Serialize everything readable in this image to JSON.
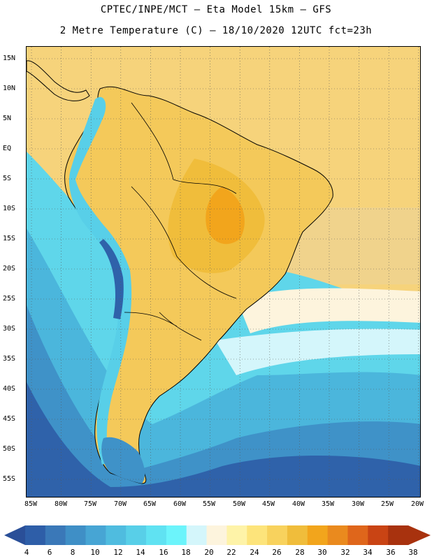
{
  "header": {
    "line1": "CPTEC/INPE/MCT –  Eta Model 15km – GFS",
    "line2": "2 Metre Temperature (C) – 18/10/2020 12UTC fct=23h"
  },
  "axes": {
    "lat_labels": [
      "15N",
      "10N",
      "5N",
      "EQ",
      "5S",
      "10S",
      "15S",
      "20S",
      "25S",
      "30S",
      "35S",
      "40S",
      "45S",
      "50S",
      "55S"
    ],
    "lon_labels": [
      "85W",
      "80W",
      "75W",
      "70W",
      "65W",
      "60W",
      "55W",
      "50W",
      "45W",
      "40W",
      "35W",
      "30W",
      "25W",
      "20W"
    ]
  },
  "colorbar": {
    "levels": [
      "4",
      "6",
      "8",
      "10",
      "12",
      "14",
      "16",
      "18",
      "20",
      "22",
      "24",
      "26",
      "28",
      "30",
      "32",
      "34",
      "36",
      "38"
    ],
    "colors": [
      "#2e5ea8",
      "#3a78b8",
      "#3f8fc6",
      "#47a5d4",
      "#4fbcdf",
      "#58cfe8",
      "#60e2f2",
      "#6cf4fb",
      "#d4f6fb",
      "#fdf4dd",
      "#fef3a8",
      "#fde47b",
      "#f8d25d",
      "#f0bd3b",
      "#f2a51c",
      "#ea8a1e",
      "#df661b",
      "#c94414",
      "#a8320e"
    ],
    "under_color": "#2a4f98",
    "over_color": "#a8320e"
  },
  "map": {
    "land_outline_color": "#000000",
    "grid_style": "dotted",
    "ocean_north_color": "#f6d37b",
    "ocean_south_color": "#3b79ba"
  }
}
